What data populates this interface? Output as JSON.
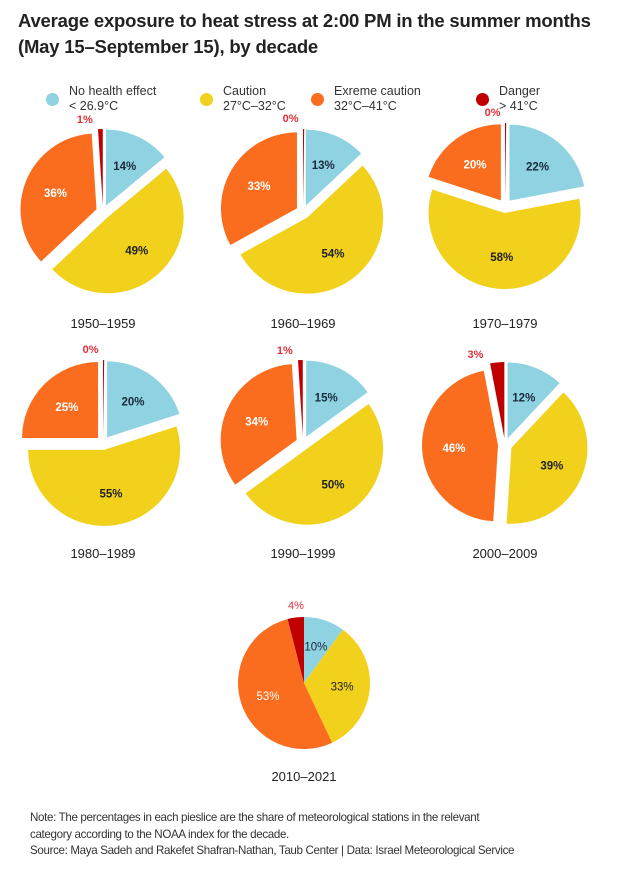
{
  "title_line1": "Average exposure to heat stress at 2:00 PM in the summer months",
  "title_line2": "(May 15–September 15), by decade",
  "legend": [
    {
      "name": "No health effect",
      "range": "< 26.9°C",
      "color": "#8fd3e3"
    },
    {
      "name": "Caution",
      "range": "27°C–32°C",
      "color": "#f1d11c"
    },
    {
      "name": "Exreme caution",
      "range": "32°C–41°C",
      "color": "#fb6d1e"
    },
    {
      "name": "Danger",
      "range": "> 41°C",
      "color": "#c00000"
    }
  ],
  "note_line1": "Note: The percentages in each pieslice are the share of meteorological stations in the relevant",
  "note_line2": "category according to the NOAA index for the decade.",
  "source_line": "Source: Maya Sadeh and Rakefet Shafran-Nathan, Taub Center | Data: Israel Meteorological Service",
  "chart_data": [
    {
      "type": "pie",
      "title": "1950–1959",
      "categories": [
        "No health effect",
        "Caution",
        "Exreme caution",
        "Danger"
      ],
      "values": [
        14,
        49,
        36,
        1
      ],
      "labels": [
        "14%",
        "49%",
        "36%",
        "1%"
      ],
      "exploded": true
    },
    {
      "type": "pie",
      "title": "1960–1969",
      "categories": [
        "No health effect",
        "Caution",
        "Exreme caution",
        "Danger"
      ],
      "values": [
        13,
        54,
        33,
        0
      ],
      "labels": [
        "13%",
        "54%",
        "33%",
        "0%"
      ],
      "exploded": true
    },
    {
      "type": "pie",
      "title": "1970–1979",
      "categories": [
        "No health effect",
        "Caution",
        "Exreme caution",
        "Danger"
      ],
      "values": [
        22,
        58,
        20,
        0
      ],
      "labels": [
        "22%",
        "58%",
        "20%",
        "0%"
      ],
      "exploded": true
    },
    {
      "type": "pie",
      "title": "1980–1989",
      "categories": [
        "No health effect",
        "Caution",
        "Exreme caution",
        "Danger"
      ],
      "values": [
        20,
        55,
        25,
        0
      ],
      "labels": [
        "20%",
        "55%",
        "25%",
        "0%"
      ],
      "exploded": true
    },
    {
      "type": "pie",
      "title": "1990–1999",
      "categories": [
        "No health effect",
        "Caution",
        "Exreme caution",
        "Danger"
      ],
      "values": [
        15,
        50,
        34,
        1
      ],
      "labels": [
        "15%",
        "50%",
        "34%",
        "1%"
      ],
      "exploded": true
    },
    {
      "type": "pie",
      "title": "2000–2009",
      "categories": [
        "No health effect",
        "Caution",
        "Exreme caution",
        "Danger"
      ],
      "values": [
        12,
        39,
        46,
        3
      ],
      "labels": [
        "12%",
        "39%",
        "46%",
        "3%"
      ],
      "exploded": true
    },
    {
      "type": "pie",
      "title": "2010–2021",
      "categories": [
        "No health effect",
        "Caution",
        "Exreme caution",
        "Danger"
      ],
      "values": [
        10,
        33,
        53,
        4
      ],
      "labels": [
        "10%",
        "33%",
        "53%",
        "4%"
      ],
      "exploded": false
    }
  ]
}
